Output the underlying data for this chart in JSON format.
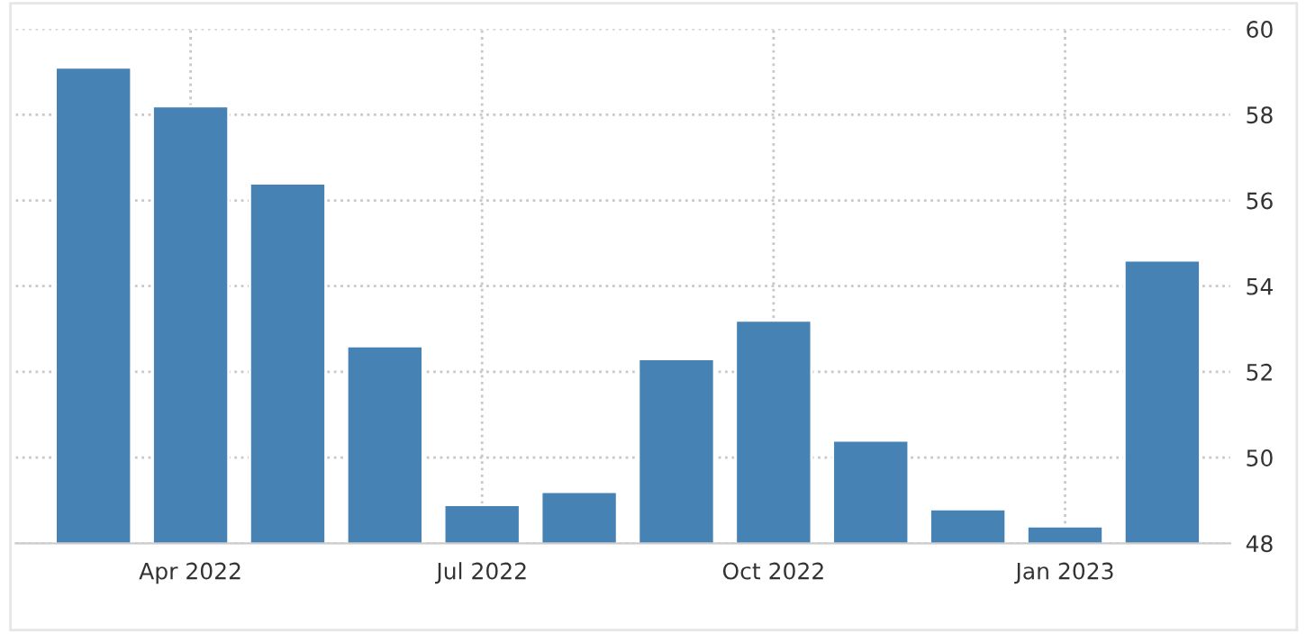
{
  "chart_data": {
    "type": "bar",
    "categories": [
      null,
      "Apr 2022",
      null,
      null,
      "Jul 2022",
      null,
      null,
      "Oct 2022",
      null,
      null,
      "Jan 2023",
      null
    ],
    "values": [
      59.1,
      58.2,
      56.4,
      52.6,
      48.9,
      49.2,
      52.3,
      53.2,
      50.4,
      48.8,
      48.4,
      54.6
    ],
    "color": "#4682b4",
    "ylim": [
      48,
      60
    ],
    "yticks": [
      48,
      50,
      52,
      54,
      56,
      58,
      60
    ],
    "grid": true,
    "legend": false
  }
}
